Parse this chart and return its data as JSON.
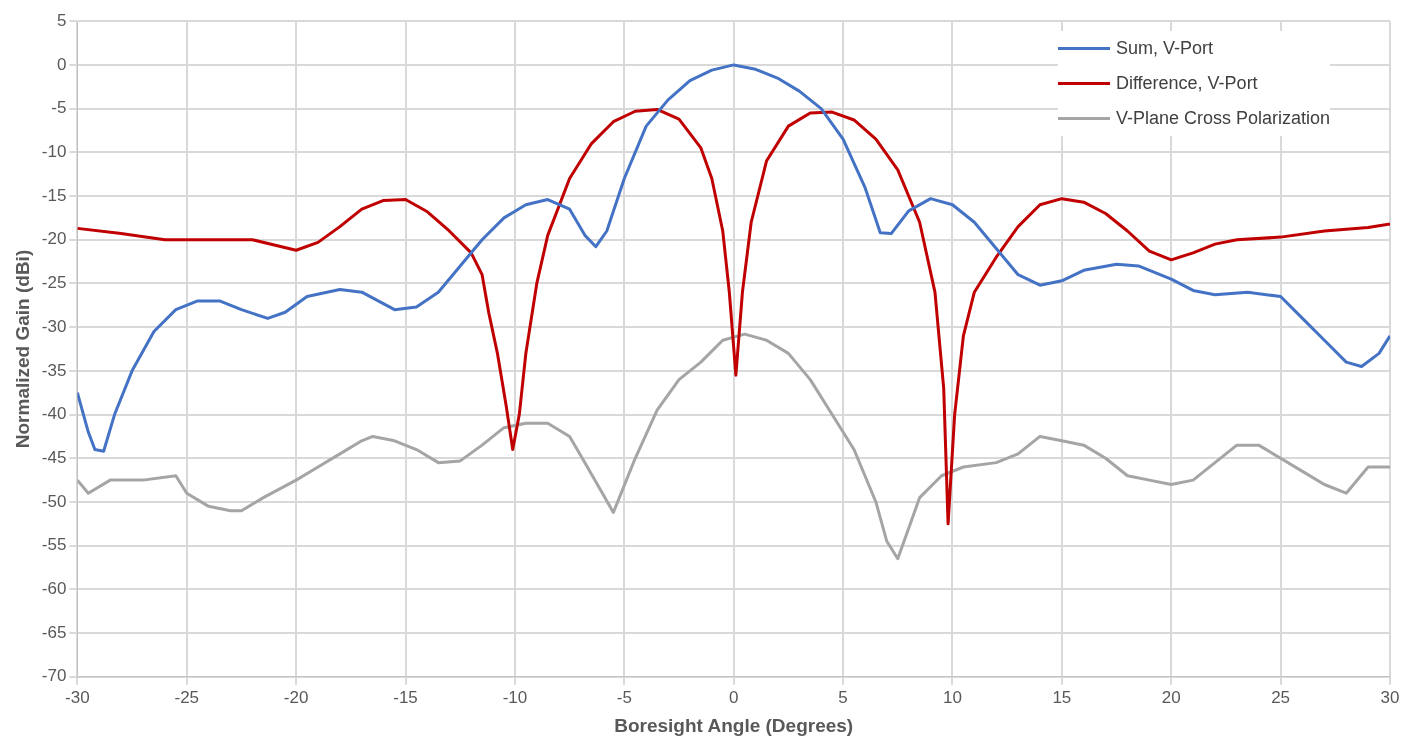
{
  "chart_data": {
    "type": "line",
    "xlabel": "Boresight Angle (Degrees)",
    "ylabel": "Normalized Gain (dBi)",
    "xlim": [
      -30,
      30
    ],
    "xticks": [
      -30,
      -25,
      -20,
      -15,
      -10,
      -5,
      0,
      5,
      10,
      15,
      20,
      25,
      30
    ],
    "ylim": [
      -70,
      5
    ],
    "yticks": [
      -70,
      -65,
      -60,
      -55,
      -50,
      -45,
      -40,
      -35,
      -30,
      -25,
      -20,
      -15,
      -10,
      -5,
      0,
      5
    ],
    "grid": true,
    "legend": "top right",
    "marker": "none",
    "line_style": "solid",
    "series": [
      {
        "name": "Sum, V-Port",
        "color": "#4472c4",
        "x": [
          -30,
          -29.5,
          -29.2,
          -28.8,
          -28.3,
          -27.5,
          -26.5,
          -25.5,
          -24.5,
          -23.5,
          -22.5,
          -21.3,
          -20.5,
          -19.5,
          -18,
          -17,
          -15.5,
          -14.5,
          -13.5,
          -12.5,
          -11.5,
          -10.5,
          -9.5,
          -8.5,
          -7.5,
          -6.8,
          -6.3,
          -5.8,
          -5,
          -4,
          -3,
          -2,
          -1,
          0,
          1,
          2,
          3,
          4,
          5,
          6,
          6.7,
          7.2,
          8,
          9,
          10,
          11,
          12,
          13,
          14,
          15,
          16,
          17.5,
          18.5,
          20,
          21,
          22,
          23.5,
          25,
          26,
          27,
          28,
          28.7,
          29.5,
          30
        ],
        "values": [
          -37.5,
          -42,
          -44,
          -44.2,
          -40,
          -35,
          -30.5,
          -28,
          -27,
          -27,
          -28,
          -29,
          -28.3,
          -26.5,
          -25.7,
          -26,
          -28,
          -27.7,
          -26,
          -23,
          -20,
          -17.5,
          -16,
          -15.4,
          -16.5,
          -19.5,
          -20.8,
          -19,
          -13,
          -7,
          -4,
          -1.8,
          -0.6,
          0,
          -0.5,
          -1.5,
          -3,
          -5,
          -8.5,
          -14,
          -19.2,
          -19.3,
          -16.7,
          -15.3,
          -16,
          -18,
          -21,
          -24,
          -25.2,
          -24.7,
          -23.5,
          -22.8,
          -23,
          -24.5,
          -25.8,
          -26.3,
          -26,
          -26.5,
          -29,
          -31.5,
          -34,
          -34.5,
          -33,
          -31
        ]
      },
      {
        "name": "Difference, V-Port",
        "color": "#c00000",
        "x": [
          -30,
          -28,
          -26,
          -22,
          -20,
          -19,
          -18,
          -17,
          -16,
          -15,
          -14,
          -13,
          -12,
          -11.5,
          -11.2,
          -10.8,
          -10.4,
          -10.1,
          -9.8,
          -9.5,
          -9,
          -8.5,
          -7.5,
          -6.5,
          -5.5,
          -4.5,
          -3.5,
          -2.5,
          -1.5,
          -1,
          -0.5,
          -0.2,
          0.1,
          0.4,
          0.8,
          1.5,
          2.5,
          3.5,
          4.5,
          5.5,
          6.5,
          7.5,
          8.5,
          9.2,
          9.6,
          9.8,
          10.1,
          10.5,
          11,
          12,
          13,
          14,
          15,
          16,
          17,
          18,
          19,
          20,
          21,
          22,
          23,
          25,
          27,
          29,
          30
        ],
        "values": [
          -18.7,
          -19.3,
          -20,
          -20,
          -21.2,
          -20.3,
          -18.5,
          -16.5,
          -15.5,
          -15.4,
          -16.8,
          -19,
          -21.5,
          -24,
          -28.3,
          -33,
          -39,
          -44,
          -40,
          -33,
          -25,
          -19.5,
          -13,
          -9,
          -6.5,
          -5.3,
          -5.1,
          -6.2,
          -9.5,
          -13,
          -19,
          -26,
          -35.5,
          -26,
          -18,
          -11,
          -7,
          -5.5,
          -5.4,
          -6.3,
          -8.5,
          -12,
          -18,
          -26,
          -37,
          -52.5,
          -40,
          -31,
          -26,
          -22,
          -18.5,
          -16,
          -15.3,
          -15.7,
          -17,
          -19,
          -21.3,
          -22.3,
          -21.5,
          -20.5,
          -20,
          -19.7,
          -19,
          -18.6,
          -18.2
        ]
      },
      {
        "name": "V-Plane Cross Polarization",
        "color": "#a5a5a5",
        "x": [
          -30,
          -29.5,
          -28.5,
          -27,
          -25.5,
          -25,
          -24,
          -23,
          -22.5,
          -21.5,
          -20,
          -19,
          -18,
          -17,
          -16.5,
          -15.5,
          -14.5,
          -13.5,
          -12.5,
          -11.5,
          -10.5,
          -9.5,
          -8.5,
          -7.5,
          -6.8,
          -6,
          -5.5,
          -4.5,
          -3.5,
          -2.5,
          -1.5,
          -0.5,
          0.5,
          1.5,
          2.5,
          3.5,
          4.5,
          5.5,
          6.5,
          7,
          7.5,
          8,
          8.5,
          9.5,
          10.5,
          12,
          13,
          14,
          15,
          16,
          17,
          18,
          19,
          20,
          21,
          22,
          23,
          24,
          25,
          26,
          27,
          28,
          29,
          30
        ],
        "values": [
          -47.5,
          -49,
          -47.5,
          -47.5,
          -47,
          -49,
          -50.5,
          -51,
          -51,
          -49.5,
          -47.5,
          -46,
          -44.5,
          -43,
          -42.5,
          -43,
          -44,
          -45.5,
          -45.3,
          -43.5,
          -41.5,
          -41,
          -41,
          -42.5,
          -45.5,
          -49,
          -51.2,
          -45,
          -39.5,
          -36,
          -34,
          -31.5,
          -30.8,
          -31.5,
          -33,
          -36,
          -40,
          -44,
          -50,
          -54.5,
          -56.5,
          -53,
          -49.5,
          -47,
          -46,
          -45.5,
          -44.5,
          -42.5,
          -43,
          -43.5,
          -45,
          -47,
          -47.5,
          -48,
          -47.5,
          -45.5,
          -43.5,
          -43.5,
          -45,
          -46.5,
          -48,
          -49,
          -46,
          -46
        ]
      }
    ]
  }
}
